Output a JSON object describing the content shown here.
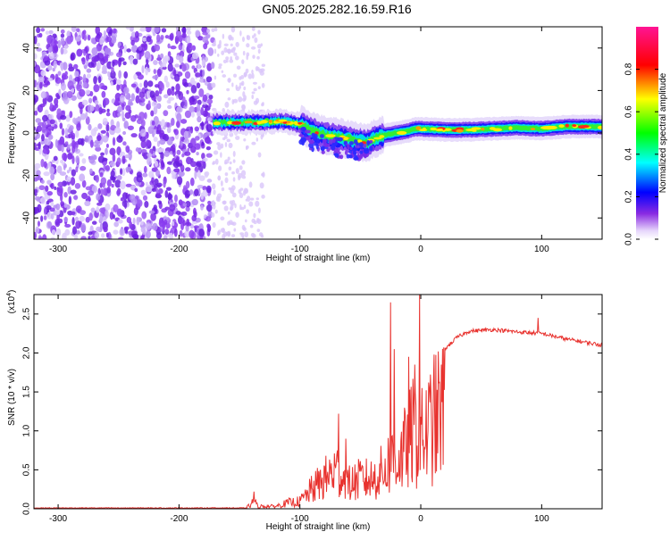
{
  "title": "GN05.2025.282.16.59.R16",
  "chart_data": [
    {
      "type": "heatmap",
      "name": "spectrogram",
      "xlabel": "Height of straight line (km)",
      "ylabel": "Frequency (Hz)",
      "xlim": [
        -320,
        150
      ],
      "ylim": [
        -50,
        50
      ],
      "xticks": [
        -300,
        -200,
        -100,
        0,
        100
      ],
      "yticks": [
        -40,
        -20,
        0,
        20,
        40
      ],
      "colorbar": {
        "label": "Normalized spectral amplitude",
        "range": [
          0.0,
          1.0
        ],
        "ticks": [
          "0.0",
          "0.2",
          "0.4",
          "0.6",
          "0.8"
        ],
        "tick_values": [
          0.0,
          0.2,
          0.4,
          0.6,
          0.8
        ]
      },
      "noise_region": {
        "x_from": -320,
        "x_to": -172,
        "fade_to": -130
      },
      "ridge": {
        "x": [
          -172,
          -150,
          -130,
          -115,
          -100,
          -90,
          -80,
          -70,
          -60,
          -50,
          -45,
          -40,
          -30,
          -20,
          -10,
          -5,
          0,
          20,
          40,
          60,
          80,
          100,
          120,
          150
        ],
        "y": [
          5,
          5,
          5,
          5.5,
          4,
          1,
          -1,
          -2,
          -3,
          -4,
          -5,
          -3,
          -1,
          0,
          1,
          2,
          2,
          1.5,
          1.5,
          2,
          2.5,
          2,
          3,
          3
        ]
      }
    },
    {
      "type": "line",
      "name": "snr",
      "xlabel": "Height of straight line (km)",
      "ylabel": "SNR (10 * v/v)",
      "scale_label": "(x10",
      "scale_exp": "4",
      "scale_close": ")",
      "xlim": [
        -320,
        150
      ],
      "ylim": [
        0,
        2.75
      ],
      "xticks": [
        -300,
        -200,
        -100,
        0,
        100
      ],
      "yticks": [
        "0.0",
        "0.5",
        "1.0",
        "1.5",
        "2.0",
        "2.5"
      ],
      "ytick_values": [
        0.0,
        0.5,
        1.0,
        1.5,
        2.0,
        2.5
      ],
      "color": "#e8322e",
      "envelope": {
        "x": [
          -320,
          -145,
          -140,
          -138,
          -135,
          -120,
          -110,
          -100,
          -90,
          -80,
          -70,
          -60,
          -50,
          -40,
          -30,
          -25,
          -20,
          -15,
          -10,
          -5,
          0,
          5,
          10,
          20,
          30,
          40,
          60,
          80,
          100,
          120,
          150
        ],
        "y": [
          0.01,
          0.01,
          0.1,
          0.18,
          0.05,
          0.05,
          0.12,
          0.15,
          0.4,
          0.6,
          0.8,
          0.5,
          0.6,
          0.6,
          0.8,
          1.0,
          1.0,
          1.1,
          1.4,
          1.6,
          1.4,
          1.55,
          1.8,
          2.05,
          2.2,
          2.28,
          2.3,
          2.27,
          2.25,
          2.18,
          2.1
        ]
      },
      "spikes": [
        {
          "x": -138,
          "y": 0.22
        },
        {
          "x": -68,
          "y": 1.22
        },
        {
          "x": -62,
          "y": 0.9
        },
        {
          "x": -25,
          "y": 2.65
        },
        {
          "x": -22,
          "y": 2.05
        },
        {
          "x": -10,
          "y": 1.95
        },
        {
          "x": -5,
          "y": 1.85
        },
        {
          "x": -1,
          "y": 2.75
        },
        {
          "x": 97,
          "y": 2.45
        }
      ]
    }
  ]
}
